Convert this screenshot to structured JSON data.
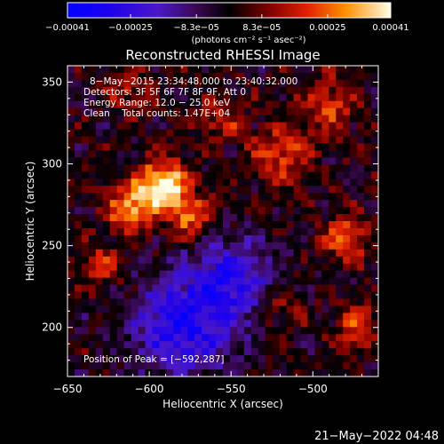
{
  "chart_data": {
    "type": "heatmap",
    "title": "Reconstructed RHESSI Image",
    "xlabel": "Heliocentric X (arcsec)",
    "ylabel": "Heliocentric Y (arcsec)",
    "xlim": [
      -650,
      -460
    ],
    "ylim": [
      170,
      360
    ],
    "x_ticks": [
      -650,
      -600,
      -550,
      -500
    ],
    "x_tick_labels": [
      "−650",
      "−600",
      "−550",
      "−500"
    ],
    "y_ticks": [
      200,
      250,
      300,
      350
    ],
    "y_tick_labels": [
      "200",
      "250",
      "300",
      "350"
    ],
    "colorbar": {
      "min": -0.00041,
      "max": 0.00041,
      "tick_values": [
        -0.00041,
        -0.00025,
        -8.3e-05,
        8.3e-05,
        0.00025,
        0.00041
      ],
      "tick_labels": [
        "−0.00041",
        "−0.00025",
        "−8.3e−05",
        "8.3e−05",
        "0.00025",
        "0.00041"
      ],
      "unit_label": "(photons cm⁻² s⁻¹ asec⁻²)"
    },
    "annotations": {
      "time_range": "8−May−2015 23:34:48.000 to 23:40:32.000",
      "detectors": "Detectors: 3F 5F 6F 7F 8F 9F, Att 0",
      "energy_range": "Energy Range: 12.0 − 25.0 keV",
      "clean": "Clean    Total counts: 1.47E+04",
      "peak": "Position of Peak = [−592,287]"
    },
    "peak_position": [
      -592,
      287
    ],
    "sources": [
      {
        "x": -592,
        "y": 287,
        "amp": 0.00041,
        "sigma": 11
      },
      {
        "x": -612,
        "y": 272,
        "amp": 0.0003,
        "sigma": 10
      },
      {
        "x": -575,
        "y": 268,
        "amp": 0.00026,
        "sigma": 9
      },
      {
        "x": -520,
        "y": 305,
        "amp": 0.00022,
        "sigma": 12
      },
      {
        "x": -490,
        "y": 335,
        "amp": 0.00018,
        "sigma": 12
      },
      {
        "x": -480,
        "y": 255,
        "amp": 0.00022,
        "sigma": 10
      },
      {
        "x": -472,
        "y": 200,
        "amp": 0.00018,
        "sigma": 10
      },
      {
        "x": -628,
        "y": 238,
        "amp": 0.00018,
        "sigma": 9
      },
      {
        "x": -612,
        "y": 345,
        "amp": 0.00015,
        "sigma": 9
      },
      {
        "x": -555,
        "y": 325,
        "amp": 0.00014,
        "sigma": 10
      },
      {
        "x": -520,
        "y": 210,
        "amp": 0.00013,
        "sigma": 9
      },
      {
        "x": -580,
        "y": 200,
        "amp": -0.0003,
        "sigma": 22
      },
      {
        "x": -550,
        "y": 230,
        "amp": -0.00025,
        "sigma": 18
      }
    ]
  },
  "footer": {
    "timestamp": "21−May−2022 04:48"
  }
}
